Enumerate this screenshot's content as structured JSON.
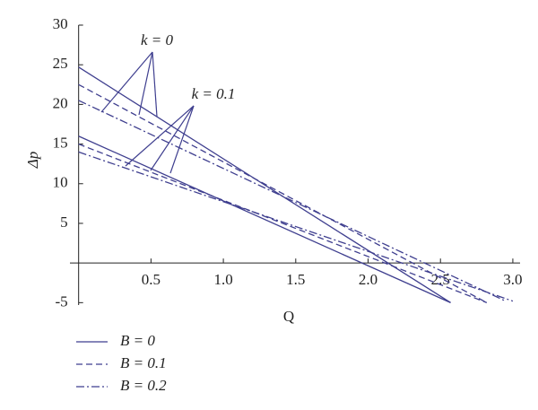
{
  "chart_data": {
    "type": "line",
    "xlabel": "Q",
    "ylabel": "Δp",
    "xlim": [
      -0.06,
      3.05
    ],
    "ylim": [
      -5.3,
      30
    ],
    "xticks": [
      0.5,
      {
        "value": 1,
        "label": "1.0"
      },
      1.5,
      {
        "value": 2,
        "label": "2.0"
      },
      2.5,
      {
        "value": 3,
        "label": "3.0"
      }
    ],
    "yticks": [
      -5,
      5,
      10,
      15,
      20,
      25,
      30
    ],
    "color": "#3f3f8f",
    "annotations": [
      "k = 0",
      "k = 0.1"
    ],
    "legend": [
      {
        "label": "B = 0",
        "dash": "solid"
      },
      {
        "label": "B = 0.1",
        "dash": "dashed"
      },
      {
        "label": "B = 0.2",
        "dash": "dashdot"
      }
    ],
    "series": [
      {
        "dash": "solid",
        "x": [
          0,
          2.57
        ],
        "values": [
          24.7,
          -5
        ]
      },
      {
        "dash": "dashed",
        "x": [
          0,
          2.82
        ],
        "values": [
          22.5,
          -5
        ]
      },
      {
        "dash": "dashdot",
        "x": [
          0,
          2.95
        ],
        "values": [
          20.5,
          -4.8
        ]
      },
      {
        "dash": "solid",
        "x": [
          0,
          2.57
        ],
        "values": [
          16,
          -5
        ]
      },
      {
        "dash": "dashed",
        "x": [
          0,
          2.82
        ],
        "values": [
          15,
          -5
        ]
      },
      {
        "dash": "dashdot",
        "x": [
          0,
          3.0
        ],
        "values": [
          14,
          -4.8
        ]
      }
    ]
  }
}
